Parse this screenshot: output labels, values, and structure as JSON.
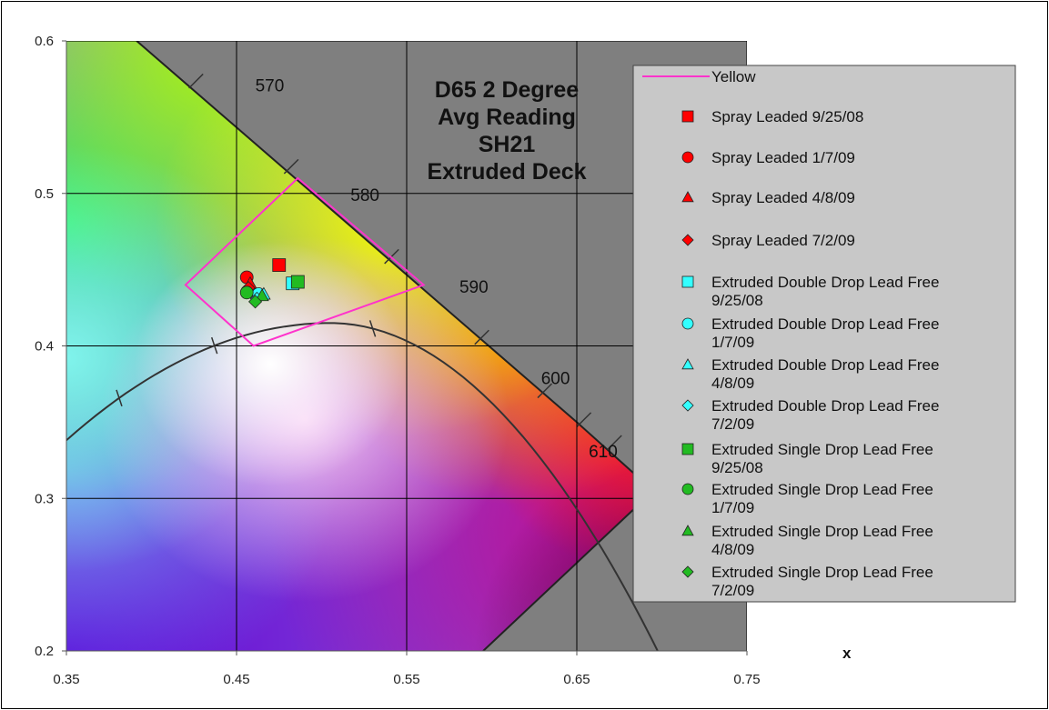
{
  "chart_data": {
    "type": "scatter",
    "title": [
      "D65 2 Degree",
      "Avg Reading",
      "SH21",
      "Extruded Deck"
    ],
    "xlabel": "x",
    "ylabel": "",
    "xlim": [
      0.35,
      0.75
    ],
    "ylim": [
      0.2,
      0.6
    ],
    "x_ticks": [
      "0.35",
      "0.45",
      "0.55",
      "0.65",
      "0.75"
    ],
    "y_ticks": [
      "0.2",
      "0.3",
      "0.4",
      "0.5",
      "0.6"
    ],
    "grid": true,
    "legend_position": "right",
    "wavelength_labels": [
      {
        "text": "570",
        "x": 0.461,
        "y": 0.567
      },
      {
        "text": "580",
        "x": 0.517,
        "y": 0.495
      },
      {
        "text": "590",
        "x": 0.581,
        "y": 0.435
      },
      {
        "text": "600",
        "x": 0.629,
        "y": 0.375
      },
      {
        "text": "610",
        "x": 0.657,
        "y": 0.327
      }
    ],
    "series": [
      {
        "name": "Yellow",
        "type": "polygon",
        "color": "#ff33cc",
        "points": [
          [
            0.42,
            0.44
          ],
          [
            0.486,
            0.51
          ],
          [
            0.56,
            0.44
          ],
          [
            0.46,
            0.4
          ]
        ]
      },
      {
        "name": "Spray Leaded 9/25/08",
        "marker": "square",
        "color": "#ff0000",
        "points": [
          [
            0.475,
            0.453
          ]
        ]
      },
      {
        "name": "Spray Leaded 1/7/09",
        "marker": "circle",
        "color": "#ff0000",
        "points": [
          [
            0.456,
            0.445
          ]
        ]
      },
      {
        "name": "Spray Leaded 4/8/09",
        "marker": "triangle",
        "color": "#ff0000",
        "points": [
          [
            0.458,
            0.441
          ]
        ]
      },
      {
        "name": "Spray Leaded 7/2/09",
        "marker": "diamond",
        "color": "#ff0000",
        "points": [
          [
            0.457,
            0.438
          ]
        ]
      },
      {
        "name": "Extruded Double Drop Lead Free 9/25/08",
        "marker": "square",
        "color": "#33ffff",
        "points": [
          [
            0.483,
            0.441
          ]
        ]
      },
      {
        "name": "Extruded Double Drop Lead Free 1/7/09",
        "marker": "circle",
        "color": "#33ffff",
        "points": [
          [
            0.463,
            0.434
          ]
        ]
      },
      {
        "name": "Extruded Double Drop Lead Free 4/8/09",
        "marker": "triangle",
        "color": "#33ffff",
        "points": [
          [
            0.466,
            0.434
          ]
        ]
      },
      {
        "name": "Extruded Double Drop Lead Free 7/2/09",
        "marker": "diamond",
        "color": "#33ffff",
        "points": [
          [
            0.462,
            0.431
          ]
        ]
      },
      {
        "name": "Extruded Single Drop Lead Free 9/25/08",
        "marker": "square",
        "color": "#22bb22",
        "points": [
          [
            0.486,
            0.442
          ]
        ]
      },
      {
        "name": "Extruded Single Drop Lead Free 1/7/09",
        "marker": "circle",
        "color": "#22bb22",
        "points": [
          [
            0.456,
            0.435
          ]
        ]
      },
      {
        "name": "Extruded Single Drop Lead Free 4/8/09",
        "marker": "triangle",
        "color": "#22bb22",
        "points": [
          [
            0.465,
            0.433
          ]
        ]
      },
      {
        "name": "Extruded Single Drop Lead Free 7/2/09",
        "marker": "diamond",
        "color": "#22bb22",
        "points": [
          [
            0.461,
            0.429
          ]
        ]
      }
    ]
  }
}
